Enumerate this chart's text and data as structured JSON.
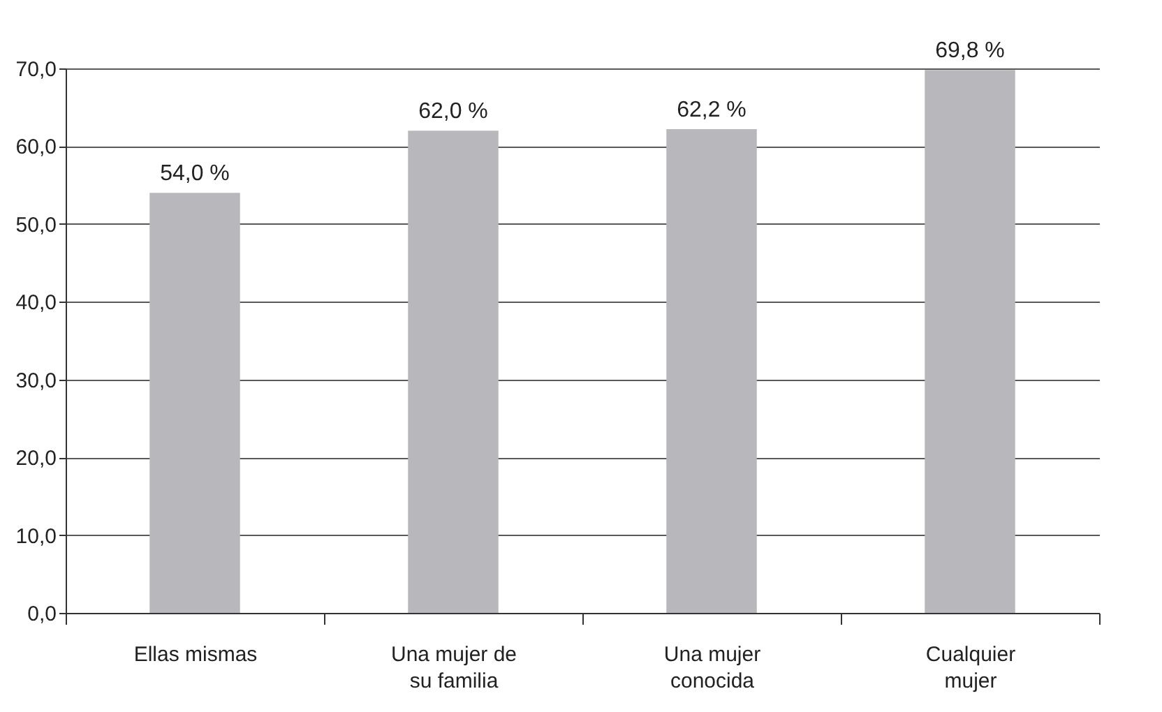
{
  "chart_data": {
    "type": "bar",
    "categories": [
      "Ellas mismas",
      "Una mujer de su familia",
      "Una mujer conocida",
      "Cualquier mujer"
    ],
    "values": [
      54.0,
      62.0,
      62.2,
      69.8
    ],
    "color": "#b8b8bc",
    "value_labels": [
      "54,0 %",
      "62,0 %",
      "62,2 %",
      "69,8 %"
    ],
    "ylim": [
      0,
      70
    ],
    "yticks": [
      {
        "value": 0,
        "label": "0,0"
      },
      {
        "value": 10,
        "label": "10,0"
      },
      {
        "value": 20,
        "label": "20,0"
      },
      {
        "value": 30,
        "label": "30,0"
      },
      {
        "value": 40,
        "label": "40,0"
      },
      {
        "value": 50,
        "label": "50,0"
      },
      {
        "value": 60,
        "label": "60,0"
      },
      {
        "value": 70,
        "label": "70,0"
      }
    ],
    "grid": "y"
  }
}
